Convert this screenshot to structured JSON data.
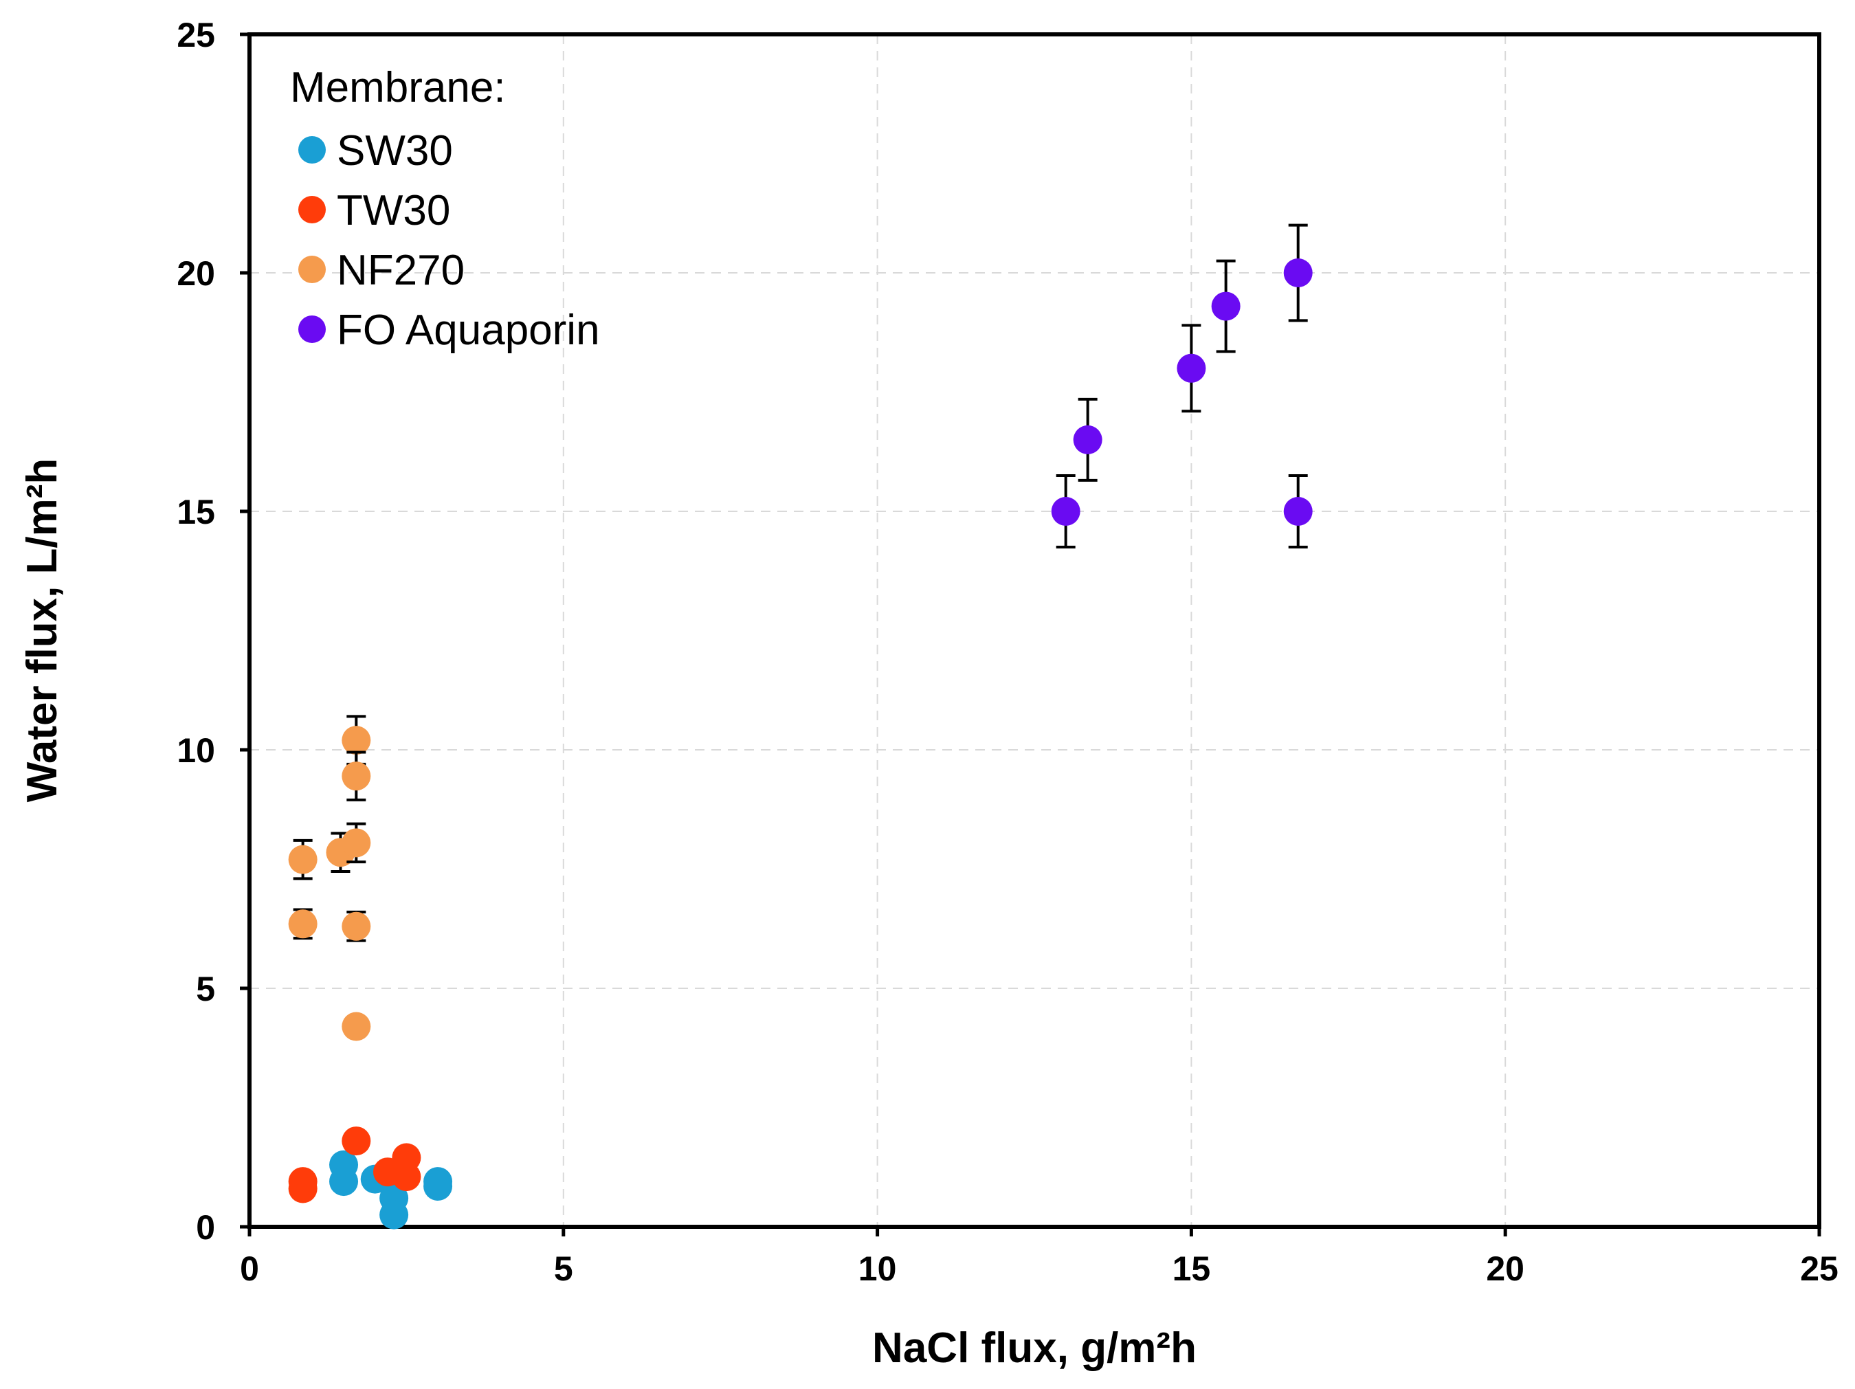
{
  "chart_data": {
    "type": "scatter",
    "title": "",
    "xlabel": "NaCl flux, g/m²h",
    "ylabel": "Water flux, L/m²h",
    "xlim": [
      0,
      25
    ],
    "ylim": [
      0,
      25
    ],
    "xticks": [
      "0",
      "5",
      "10",
      "15",
      "20",
      "25"
    ],
    "yticks": [
      "0",
      "5",
      "10",
      "15",
      "20",
      "25"
    ],
    "grid": true,
    "legend": {
      "title": "Membrane:",
      "position": "top-left"
    },
    "series": [
      {
        "name": "SW30",
        "color": "#1a9fd4",
        "points": [
          {
            "x": 1.5,
            "y": 1.3,
            "err": 0
          },
          {
            "x": 1.5,
            "y": 0.95,
            "err": 0
          },
          {
            "x": 2.0,
            "y": 1.0,
            "err": 0
          },
          {
            "x": 2.3,
            "y": 0.6,
            "err": 0
          },
          {
            "x": 2.3,
            "y": 0.25,
            "err": 0
          },
          {
            "x": 3.0,
            "y": 0.95,
            "err": 0
          },
          {
            "x": 3.0,
            "y": 0.85,
            "err": 0
          }
        ]
      },
      {
        "name": "TW30",
        "color": "#ff3c0a",
        "points": [
          {
            "x": 0.85,
            "y": 0.95,
            "err": 0
          },
          {
            "x": 0.85,
            "y": 0.8,
            "err": 0
          },
          {
            "x": 1.7,
            "y": 1.8,
            "err": 0
          },
          {
            "x": 2.2,
            "y": 1.15,
            "err": 0
          },
          {
            "x": 2.5,
            "y": 1.45,
            "err": 0
          },
          {
            "x": 2.5,
            "y": 1.05,
            "err": 0
          }
        ]
      },
      {
        "name": "NF270",
        "color": "#f59b4d",
        "points": [
          {
            "x": 0.85,
            "y": 7.7,
            "err": 0.4
          },
          {
            "x": 0.85,
            "y": 6.35,
            "err": 0.3
          },
          {
            "x": 1.45,
            "y": 7.85,
            "err": 0.4
          },
          {
            "x": 1.7,
            "y": 10.2,
            "err": 0.5
          },
          {
            "x": 1.7,
            "y": 9.45,
            "err": 0.5
          },
          {
            "x": 1.7,
            "y": 8.05,
            "err": 0.4
          },
          {
            "x": 1.7,
            "y": 6.3,
            "err": 0.3
          },
          {
            "x": 1.7,
            "y": 4.2,
            "err": 0
          }
        ]
      },
      {
        "name": "FO Aquaporin",
        "color": "#6a0bf2",
        "points": [
          {
            "x": 13.0,
            "y": 15.0,
            "err": 0.75
          },
          {
            "x": 13.35,
            "y": 16.5,
            "err": 0.85
          },
          {
            "x": 15.0,
            "y": 18.0,
            "err": 0.9
          },
          {
            "x": 15.55,
            "y": 19.3,
            "err": 0.95
          },
          {
            "x": 16.7,
            "y": 20.0,
            "err": 1.0
          },
          {
            "x": 16.7,
            "y": 15.0,
            "err": 0.75
          }
        ]
      }
    ]
  }
}
